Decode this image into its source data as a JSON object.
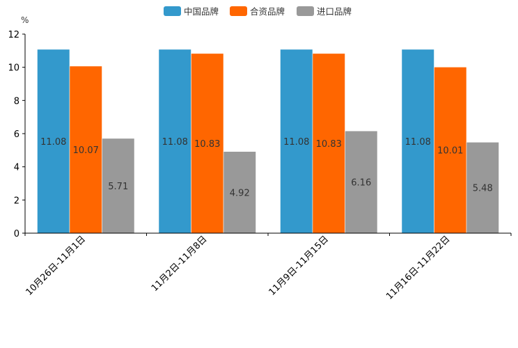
{
  "chart_data": {
    "type": "bar",
    "title": "",
    "xlabel": "",
    "ylabel": "%",
    "ylim": [
      0,
      12
    ],
    "yticks": [
      0,
      2,
      4,
      6,
      8,
      10,
      12
    ],
    "grid": false,
    "legend_position": "top-center",
    "categories": [
      "10月26日-11月1日",
      "11月2日-11月8日",
      "11月9日-11月15日",
      "11月16日-11月22日"
    ],
    "series": [
      {
        "name": "中国品牌",
        "color": "#3399cc",
        "values": [
          11.08,
          11.08,
          11.08,
          11.08
        ],
        "labels": [
          "11.08",
          "11.08",
          "11.08",
          "11.08"
        ]
      },
      {
        "name": "合资品牌",
        "color": "#ff6600",
        "values": [
          10.07,
          10.83,
          10.83,
          10.01
        ],
        "labels": [
          "10.07",
          "10.83",
          "10.83",
          "10.01"
        ]
      },
      {
        "name": "进口品牌",
        "color": "#999999",
        "values": [
          5.71,
          4.92,
          6.16,
          5.48
        ],
        "labels": [
          "5.71",
          "4.92",
          "6.16",
          "5.48"
        ]
      }
    ]
  }
}
